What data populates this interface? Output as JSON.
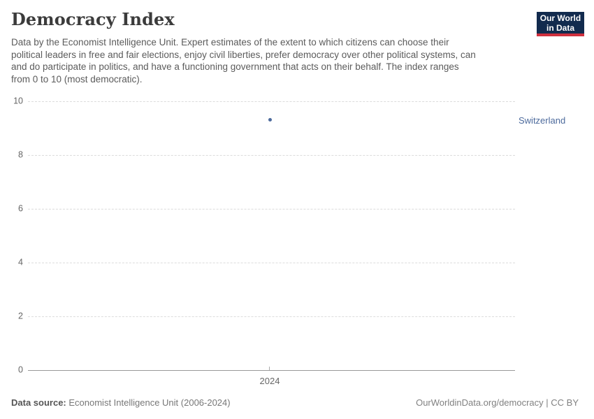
{
  "header": {
    "title": "Democracy Index",
    "logo": {
      "line1": "Our World",
      "line2": "in Data"
    }
  },
  "subtitle_lines": [
    "Data by the Economist Intelligence Unit. Expert estimates of the extent to which citizens can choose their",
    "political leaders in free and fair elections, enjoy civil liberties, prefer democracy over other political systems, can",
    "and do participate in politics, and have a functioning government that acts on their behalf. The index ranges",
    "from 0 to 10 (most democratic)."
  ],
  "chart_data": {
    "type": "scatter",
    "title": "Democracy Index",
    "subtitle": "Data by the Economist Intelligence Unit. Expert estimates of the extent to which citizens can choose their political leaders in free and fair elections, enjoy civil liberties, prefer democracy over other political systems, can and do participate in politics, and have a functioning government that acts on their behalf. The index ranges from 0 to 10 (most democratic).",
    "series": [
      {
        "name": "Switzerland",
        "x": [
          2024
        ],
        "values": [
          9.32
        ],
        "color": "#4C6A9C"
      }
    ],
    "xlabel": "",
    "ylabel": "",
    "ylim": [
      0,
      10
    ],
    "yticks": [
      10,
      8,
      6,
      4,
      2,
      0
    ],
    "xticks": [
      "2024"
    ],
    "grid": true,
    "legend_position": "right-of-point"
  },
  "footer": {
    "source_label": "Data source:",
    "source_value": " Economist Intelligence Unit (2006-2024)",
    "link": "OurWorldinData.org/democracy",
    "separator": " | ",
    "license": "CC BY"
  },
  "colors": {
    "accent_blue": "#4C6A9C",
    "logo_navy": "#122B4E",
    "logo_red": "#CF303E",
    "gridline": "#DCDCDC",
    "axis_line": "#999999",
    "tick_text": "#666666"
  }
}
